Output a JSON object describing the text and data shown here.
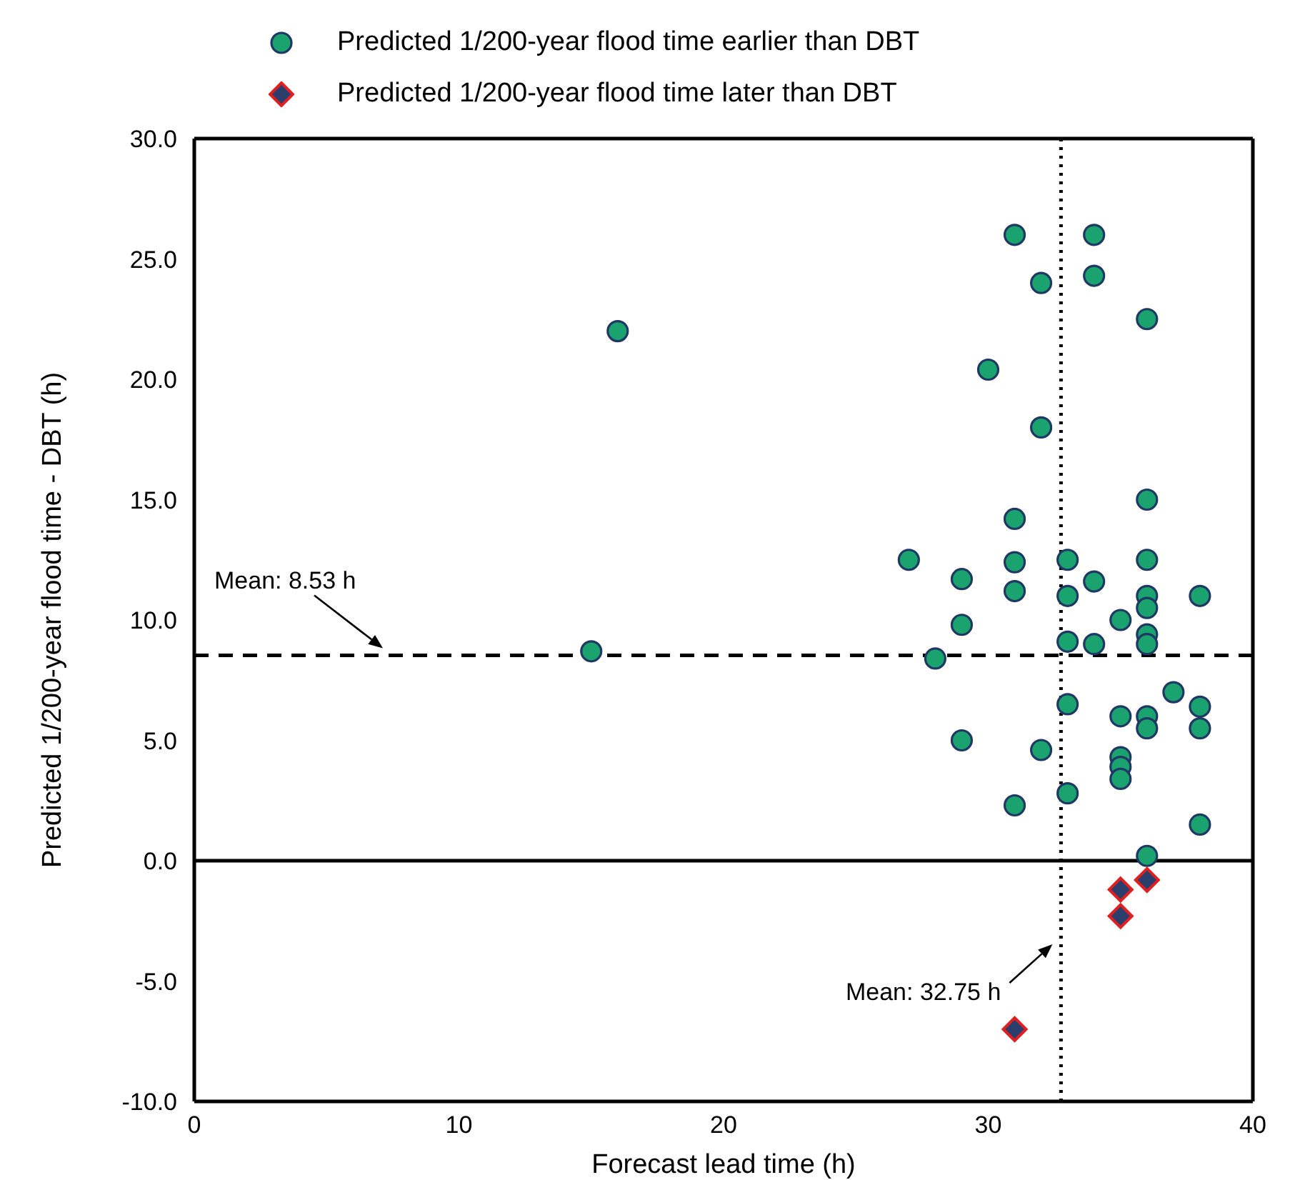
{
  "chart_data": {
    "type": "scatter",
    "xlabel": "Forecast lead time (h)",
    "ylabel": "Predicted 1/200-year flood time - DBT (h)",
    "xlim": [
      0,
      40
    ],
    "xticks": [
      0,
      10,
      20,
      30,
      40
    ],
    "ylim": [
      -10,
      30
    ],
    "yticks": [
      {
        "value": -10,
        "label": "-10.0"
      },
      {
        "value": -5,
        "label": "-5.0"
      },
      {
        "value": 0,
        "label": "0.0"
      },
      {
        "value": 5,
        "label": "5.0"
      },
      {
        "value": 10,
        "label": "10.0"
      },
      {
        "value": 15,
        "label": "15.0"
      },
      {
        "value": 20,
        "label": "20.0"
      },
      {
        "value": 25,
        "label": "25.0"
      },
      {
        "value": 30,
        "label": "30.0"
      }
    ],
    "grid": false,
    "legend": "top",
    "series": [
      {
        "name": "Predicted 1/200-year flood time earlier than DBT",
        "color": "#1aa36f",
        "marker": "circle",
        "x": [
          15,
          16,
          27,
          28,
          29,
          29,
          29,
          30,
          31,
          31,
          31,
          31,
          31,
          32,
          32,
          32,
          33,
          33,
          33,
          33,
          33,
          34,
          34,
          34,
          34,
          35,
          35,
          35,
          35,
          35,
          36,
          36,
          36,
          36,
          36,
          36,
          36,
          36,
          36,
          36,
          37,
          38,
          38,
          38,
          38
        ],
        "values": [
          8.7,
          22.0,
          12.5,
          8.4,
          11.7,
          9.8,
          5.0,
          20.4,
          26.0,
          14.2,
          12.4,
          11.2,
          2.3,
          24.0,
          18.0,
          4.6,
          12.5,
          11.0,
          9.1,
          6.5,
          2.8,
          26.0,
          24.3,
          11.6,
          9.0,
          10.0,
          6.0,
          4.3,
          3.9,
          3.4,
          22.5,
          15.0,
          12.5,
          11.0,
          10.5,
          9.4,
          9.0,
          6.0,
          5.5,
          0.2,
          7.0,
          11.0,
          6.4,
          5.5,
          1.5
        ]
      },
      {
        "name": "Predicted 1/200-year flood time later than DBT",
        "color": "#e02020",
        "marker": "diamond",
        "x": [
          31,
          35,
          35,
          36
        ],
        "values": [
          -7.0,
          -1.2,
          -2.3,
          -0.8
        ]
      }
    ],
    "ref_lines": [
      {
        "axis": "y",
        "value": 8.53,
        "label": "Mean: 8.53 h",
        "line_style": "dashed",
        "color": "#000000"
      },
      {
        "axis": "x",
        "value": 32.75,
        "label": "Mean: 32.75 h",
        "line_style": "dotted",
        "color": "#000000"
      },
      {
        "axis": "y",
        "value": 0,
        "label": null,
        "line_style": "solid",
        "color": "#000000"
      }
    ]
  }
}
